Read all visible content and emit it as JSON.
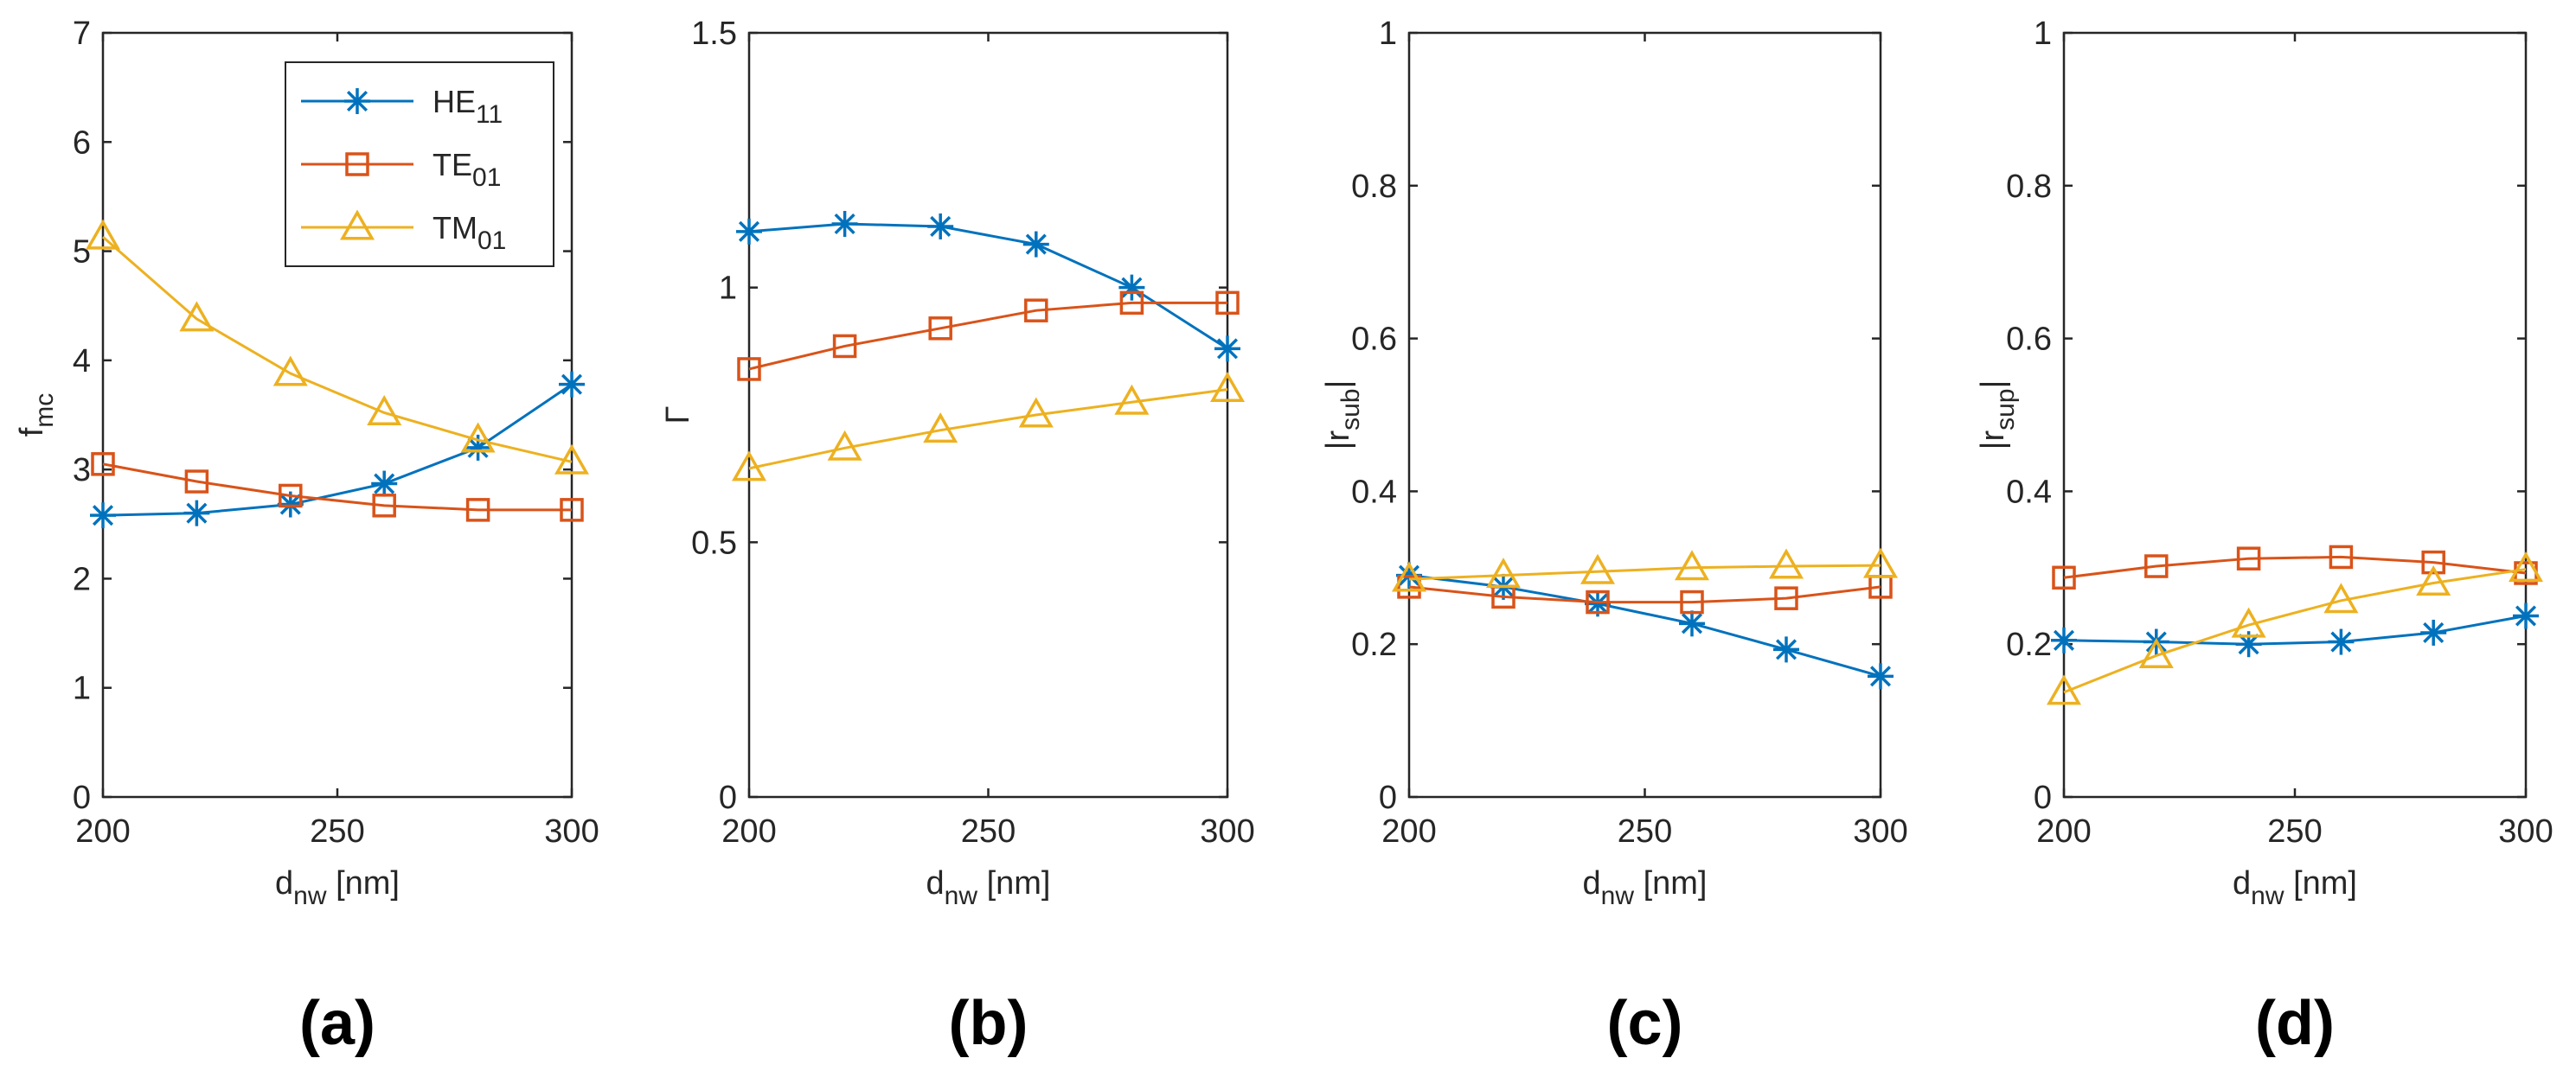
{
  "colors": {
    "HE11": "#0072BD",
    "TE01": "#D95319",
    "TM01": "#EDB120",
    "axis": "#262626"
  },
  "legend": [
    {
      "key": "HE11",
      "base": "HE",
      "sub": "11",
      "marker": "star"
    },
    {
      "key": "TE01",
      "base": "TE",
      "sub": "01",
      "marker": "square"
    },
    {
      "key": "TM01",
      "base": "TM",
      "sub": "01",
      "marker": "triangle"
    }
  ],
  "chart_data": [
    {
      "type": "line",
      "panel_label": "(a)",
      "ylabel": {
        "base": "f",
        "sub": "mc",
        "suffix": ""
      },
      "xlabel": {
        "base": "d",
        "sub": "nw",
        "suffix": " [nm]"
      },
      "x": [
        200,
        220,
        240,
        260,
        280,
        300
      ],
      "xlim": [
        200,
        300
      ],
      "xticks": [
        200,
        250,
        300
      ],
      "ylim": [
        0,
        7
      ],
      "yticks": [
        0,
        1,
        2,
        3,
        4,
        5,
        6,
        7
      ],
      "legend_position": "top-right",
      "series": [
        {
          "name": "HE11",
          "values": [
            2.58,
            2.6,
            2.68,
            2.87,
            3.2,
            3.78
          ]
        },
        {
          "name": "TE01",
          "values": [
            3.05,
            2.89,
            2.76,
            2.67,
            2.63,
            2.63
          ]
        },
        {
          "name": "TM01",
          "values": [
            5.13,
            4.38,
            3.88,
            3.52,
            3.27,
            3.07
          ]
        }
      ]
    },
    {
      "type": "line",
      "panel_label": "(b)",
      "ylabel": {
        "base": "Γ",
        "sub": "",
        "suffix": ""
      },
      "xlabel": {
        "base": "d",
        "sub": "nw",
        "suffix": " [nm]"
      },
      "x": [
        200,
        220,
        240,
        260,
        280,
        300
      ],
      "xlim": [
        200,
        300
      ],
      "xticks": [
        200,
        250,
        300
      ],
      "ylim": [
        0,
        1.5
      ],
      "yticks": [
        0,
        0.5,
        1,
        1.5
      ],
      "series": [
        {
          "name": "HE11",
          "values": [
            1.11,
            1.125,
            1.12,
            1.085,
            1.0,
            0.88
          ]
        },
        {
          "name": "TE01",
          "values": [
            0.84,
            0.885,
            0.92,
            0.955,
            0.97,
            0.97
          ]
        },
        {
          "name": "TM01",
          "values": [
            0.645,
            0.685,
            0.72,
            0.75,
            0.775,
            0.8
          ]
        }
      ]
    },
    {
      "type": "line",
      "panel_label": "(c)",
      "ylabel": {
        "base": "|r",
        "sub": "sub",
        "suffix": "|"
      },
      "xlabel": {
        "base": "d",
        "sub": "nw",
        "suffix": " [nm]"
      },
      "x": [
        200,
        220,
        240,
        260,
        280,
        300
      ],
      "xlim": [
        200,
        300
      ],
      "xticks": [
        200,
        250,
        300
      ],
      "ylim": [
        0,
        1
      ],
      "yticks": [
        0,
        0.2,
        0.4,
        0.6,
        0.8,
        1
      ],
      "series": [
        {
          "name": "HE11",
          "values": [
            0.29,
            0.275,
            0.253,
            0.227,
            0.193,
            0.158
          ]
        },
        {
          "name": "TE01",
          "values": [
            0.275,
            0.262,
            0.255,
            0.255,
            0.26,
            0.275
          ]
        },
        {
          "name": "TM01",
          "values": [
            0.285,
            0.29,
            0.295,
            0.3,
            0.302,
            0.303
          ]
        }
      ]
    },
    {
      "type": "line",
      "panel_label": "(d)",
      "ylabel": {
        "base": "|r",
        "sub": "sup",
        "suffix": "|"
      },
      "xlabel": {
        "base": "d",
        "sub": "nw",
        "suffix": " [nm]"
      },
      "x": [
        200,
        220,
        240,
        260,
        280,
        300
      ],
      "xlim": [
        200,
        300
      ],
      "xticks": [
        200,
        250,
        300
      ],
      "ylim": [
        0,
        1
      ],
      "yticks": [
        0,
        0.2,
        0.4,
        0.6,
        0.8,
        1
      ],
      "series": [
        {
          "name": "HE11",
          "values": [
            0.205,
            0.203,
            0.2,
            0.203,
            0.215,
            0.237
          ]
        },
        {
          "name": "TE01",
          "values": [
            0.287,
            0.302,
            0.312,
            0.314,
            0.307,
            0.293
          ]
        },
        {
          "name": "TM01",
          "values": [
            0.137,
            0.185,
            0.225,
            0.257,
            0.28,
            0.298
          ]
        }
      ]
    }
  ]
}
